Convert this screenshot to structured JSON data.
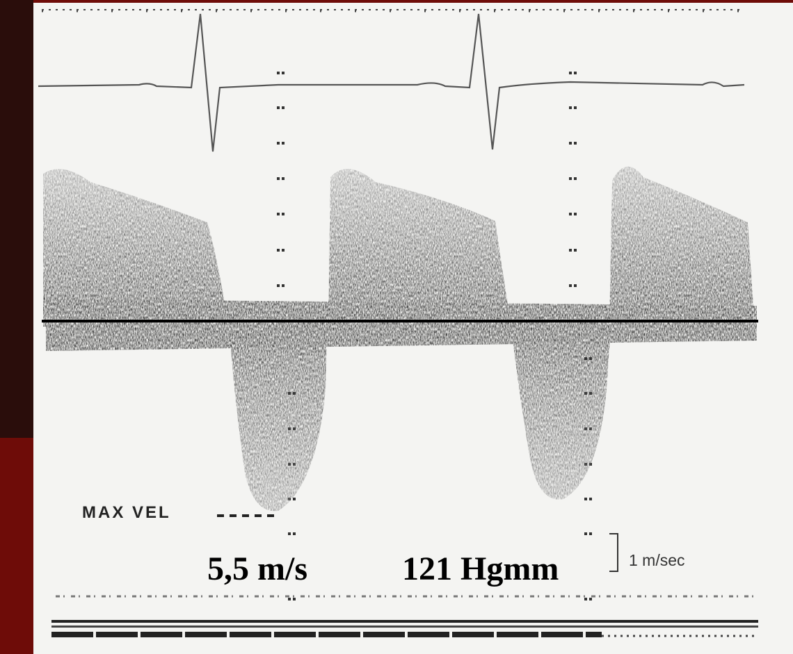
{
  "annotations": {
    "max_vel": "MAX VEL",
    "velocity": "5,5 m/s",
    "pressure": "121 Hgmm",
    "scale": "1 m/sec"
  }
}
